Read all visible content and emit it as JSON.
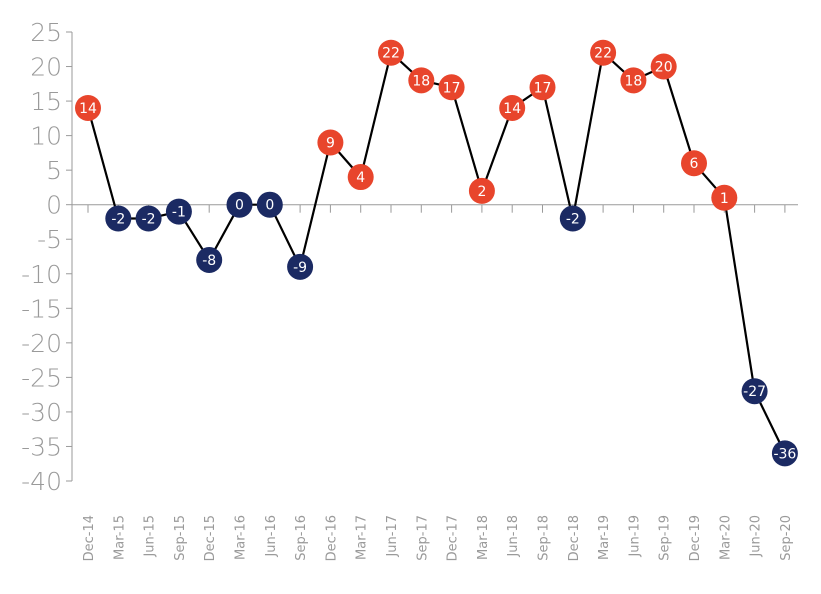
{
  "chart_data": {
    "type": "line",
    "categories": [
      "Dec-14",
      "Mar-15",
      "Jun-15",
      "Sep-15",
      "Dec-15",
      "Mar-16",
      "Jun-16",
      "Sep-16",
      "Dec-16",
      "Mar-17",
      "Jun-17",
      "Sep-17",
      "Dec-17",
      "Mar-18",
      "Jun-18",
      "Sep-18",
      "Dec-18",
      "Mar-19",
      "Jun-19",
      "Sep-19",
      "Dec-19",
      "Mar-20",
      "Jun-20",
      "Sep-20"
    ],
    "values": [
      14,
      -2,
      -2,
      -1,
      -8,
      0,
      0,
      -9,
      9,
      4,
      22,
      18,
      17,
      2,
      14,
      17,
      -2,
      22,
      18,
      20,
      6,
      1,
      -27,
      -36
    ],
    "yticks": [
      25,
      20,
      15,
      10,
      5,
      0,
      -5,
      -10,
      -15,
      -20,
      -25,
      -30,
      -35,
      -40
    ],
    "ylim": [
      -40,
      25
    ],
    "title": "",
    "xlabel": "",
    "ylabel": "",
    "grid": false,
    "colors": {
      "positive_marker": "#e8452c",
      "negative_marker": "#1b2a63",
      "line": "#000000",
      "axis": "#9a9a9a",
      "text": "#9a9a9a"
    }
  }
}
